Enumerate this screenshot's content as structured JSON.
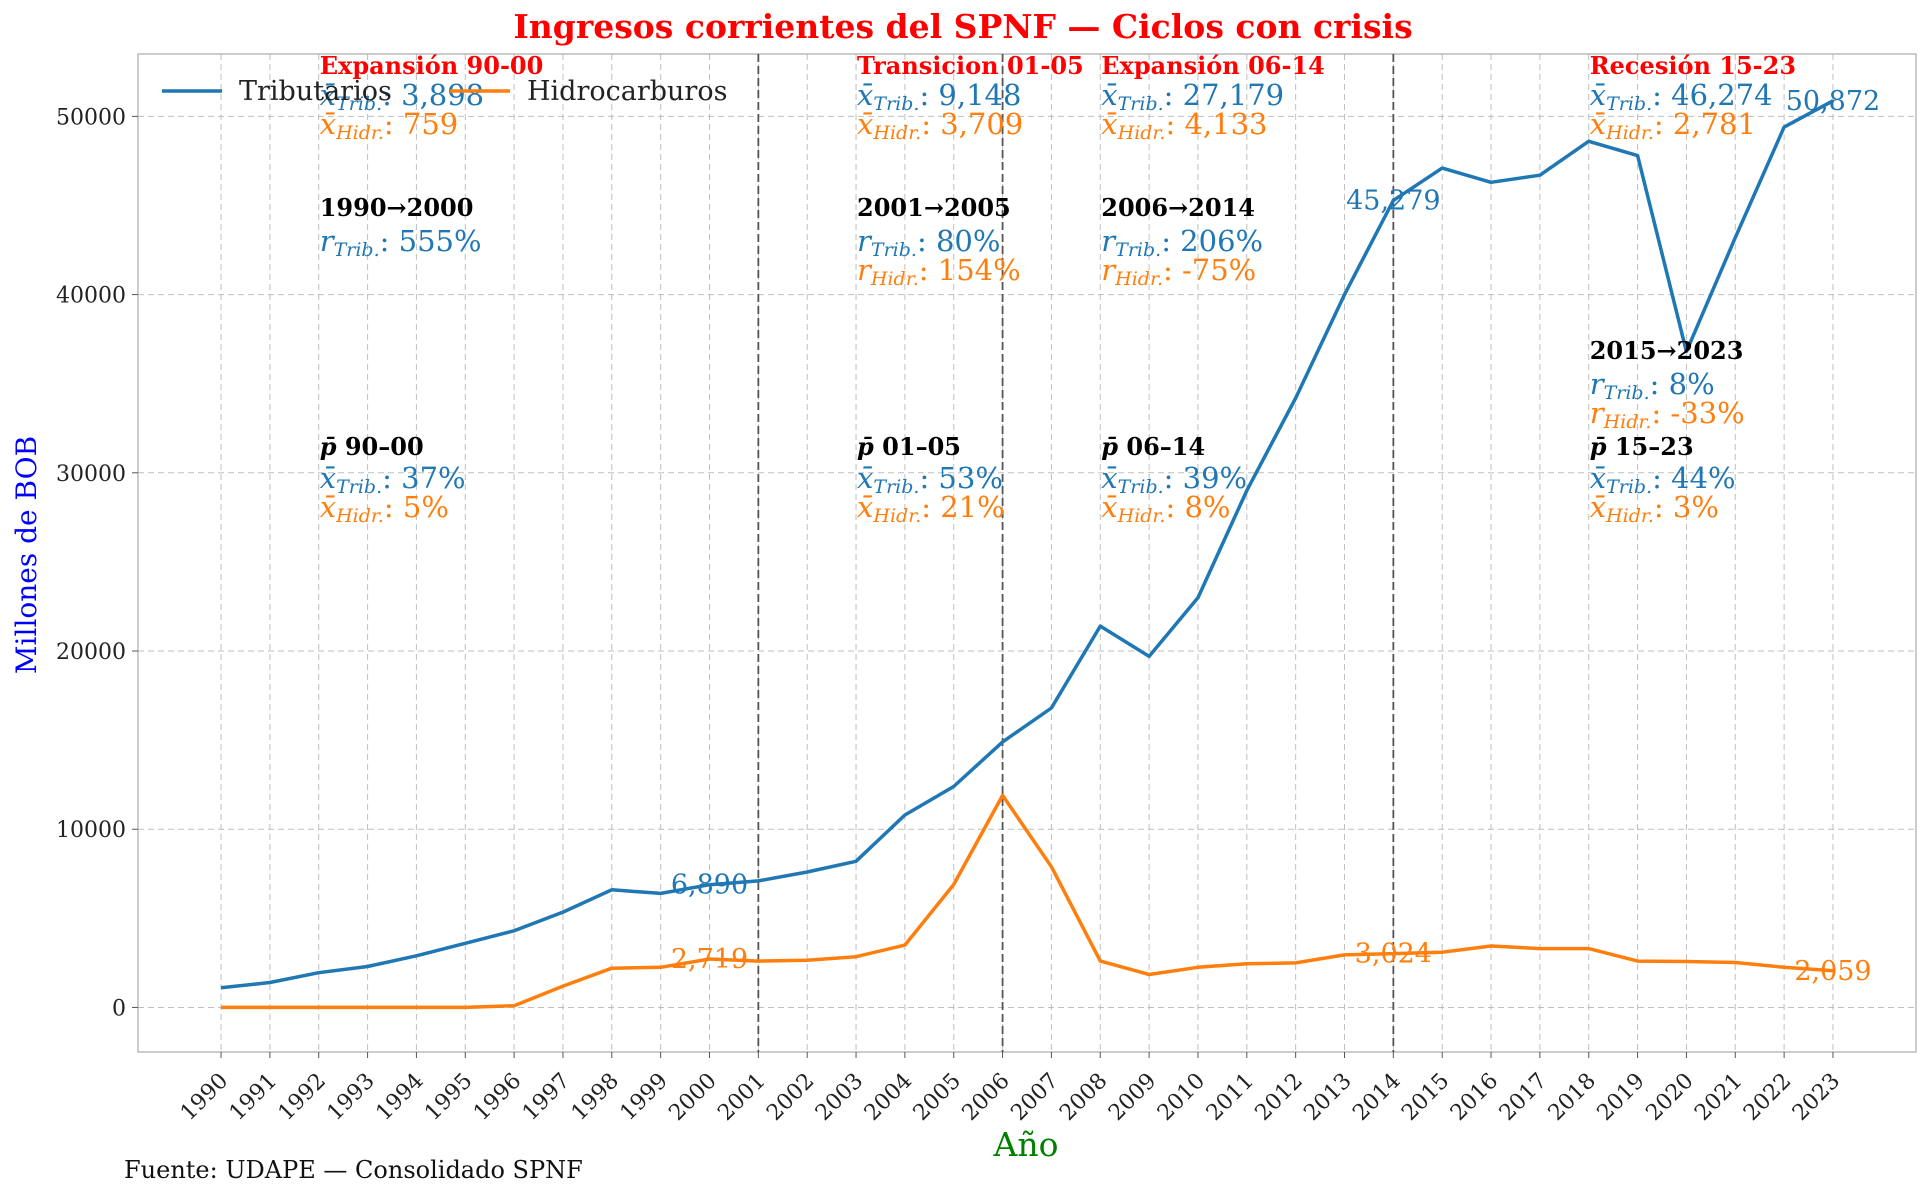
{
  "source_note": "Fuente: UDAPE — Consolidado SPNF",
  "chart_data": {
    "type": "line",
    "title": "Ingresos corrientes del SPNF — Ciclos con crisis",
    "xlabel": "Año",
    "ylabel": "Millones de BOB",
    "xlim": [
      1988.3,
      2024.7
    ],
    "ylim": [
      -2500,
      53500
    ],
    "yticks": [
      0,
      10000,
      20000,
      30000,
      40000,
      50000
    ],
    "x": [
      1990,
      1991,
      1992,
      1993,
      1994,
      1995,
      1996,
      1997,
      1998,
      1999,
      2000,
      2001,
      2002,
      2003,
      2004,
      2005,
      2006,
      2007,
      2008,
      2009,
      2010,
      2011,
      2012,
      2013,
      2014,
      2015,
      2016,
      2017,
      2018,
      2019,
      2020,
      2021,
      2022,
      2023
    ],
    "grid": true,
    "legend_position": "top-left",
    "series": [
      {
        "name": "Tributarios",
        "color": "#1f77b4",
        "values": [
          1100,
          1400,
          1950,
          2300,
          2900,
          3600,
          4300,
          5350,
          6600,
          6400,
          6890,
          7100,
          7600,
          8200,
          10800,
          12400,
          14900,
          16800,
          21400,
          19700,
          23000,
          29000,
          34200,
          40000,
          45279,
          47100,
          46300,
          46700,
          48600,
          47800,
          36800,
          43200,
          49400,
          50872
        ]
      },
      {
        "name": "Hidrocarburos",
        "color": "#ff7f0e",
        "values": [
          0,
          0,
          0,
          0,
          0,
          0,
          100,
          1200,
          2200,
          2250,
          2719,
          2600,
          2650,
          2850,
          3500,
          6900,
          11900,
          7900,
          2600,
          1850,
          2250,
          2450,
          2500,
          2950,
          3024,
          3100,
          3450,
          3300,
          3300,
          2600,
          2580,
          2520,
          2250,
          2059
        ]
      }
    ],
    "crisis_lines": [
      2001,
      2006,
      2014
    ],
    "point_labels": [
      {
        "series": 0,
        "x": 2000,
        "text": "6,890"
      },
      {
        "series": 0,
        "x": 2014,
        "text": "45,279"
      },
      {
        "series": 0,
        "x": 2023,
        "text": "50,872"
      },
      {
        "series": 1,
        "x": 2000,
        "text": "2,719"
      },
      {
        "series": 1,
        "x": 2014,
        "text": "3,024"
      },
      {
        "series": 1,
        "x": 2023,
        "text": "2,059"
      }
    ],
    "periods": [
      {
        "x": 1992,
        "title": "Expansión 90-00",
        "mean_trib": "3,898",
        "mean_hidr": "759",
        "growth_title": "1990→2000",
        "growth_trib": "555%",
        "growth_hidr": null,
        "share_title": "90–00",
        "share_trib": "37%",
        "share_hidr": "5%"
      },
      {
        "x": 2003,
        "title": "Transicion 01-05",
        "mean_trib": "9,148",
        "mean_hidr": "3,709",
        "growth_title": "2001→2005",
        "growth_trib": "80%",
        "growth_hidr": "154%",
        "share_title": "01–05",
        "share_trib": "53%",
        "share_hidr": "21%"
      },
      {
        "x": 2008,
        "title": "Expansión 06-14",
        "mean_trib": "27,179",
        "mean_hidr": "4,133",
        "growth_title": "2006→2014",
        "growth_trib": "206%",
        "growth_hidr": "-75%",
        "share_title": "06–14",
        "share_trib": "39%",
        "share_hidr": "8%"
      },
      {
        "x": 2018,
        "title": "Recesión 15-23",
        "mean_trib": "46,274",
        "mean_hidr": "2,781",
        "growth_title": "2015→2023",
        "growth_trib": "8%",
        "growth_hidr": "-33%",
        "share_title": "15–23",
        "share_trib": "44%",
        "share_hidr": "3%"
      }
    ],
    "colors": {
      "title": "#ff0000",
      "xlabel": "#008000",
      "ylabel": "#0000ff",
      "grid": "#b0b0b0",
      "crisis_line": "#555555",
      "annotation_title": "#ff0000"
    }
  }
}
